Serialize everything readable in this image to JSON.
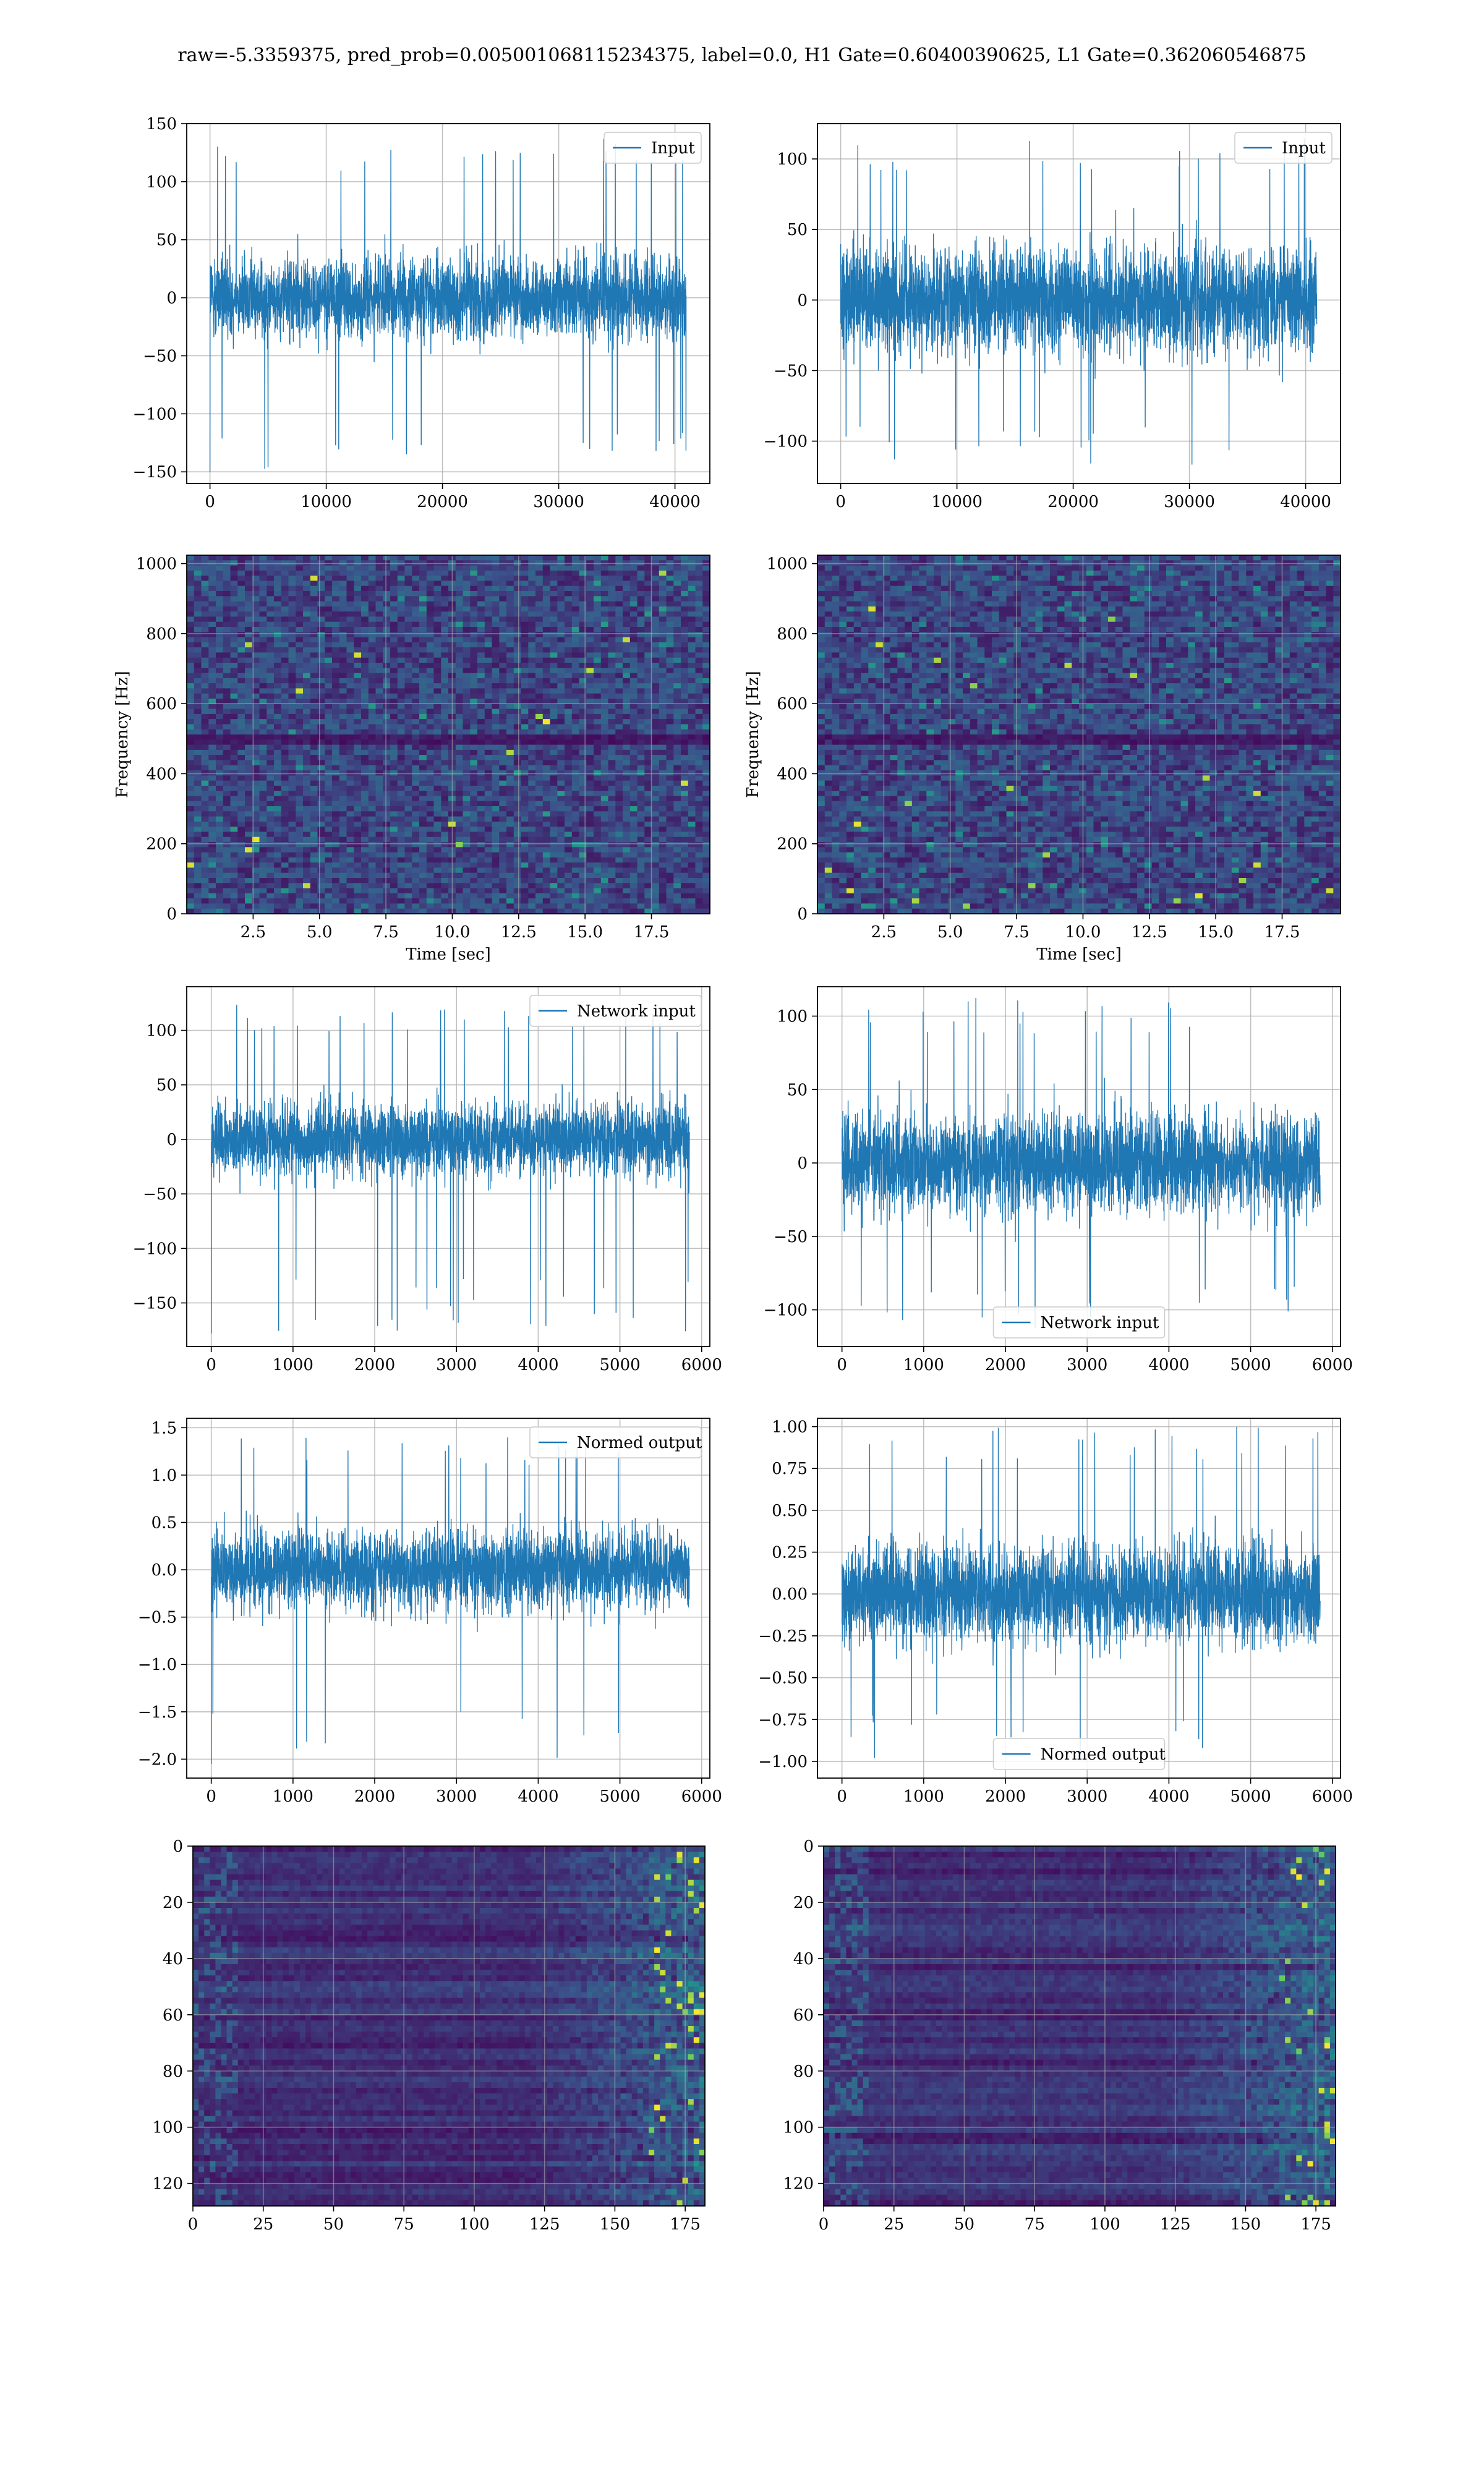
{
  "figure_title": "raw=-5.3359375, pred_prob=0.005001068115234375, label=0.0, H1 Gate=0.60400390625, L1 Gate=0.362060546875",
  "colors": {
    "line": "#1f77b4",
    "viridis_dark": "#440154",
    "viridis_mid": "#21918c",
    "viridis_bright": "#fde725",
    "grid": "#b0b0b0"
  },
  "chart_data": [
    {
      "id": "r1c1",
      "type": "line",
      "legend": [
        "Input"
      ],
      "legend_loc": "upper right",
      "xlim": [
        -2000,
        43000
      ],
      "ylim": [
        -160,
        150
      ],
      "xticks": [
        0,
        10000,
        20000,
        30000,
        40000
      ],
      "yticks": [
        150,
        100,
        50,
        0,
        -50,
        -100,
        -150
      ],
      "yticklabels": [
        "150",
        "100",
        "50",
        "0",
        "−50",
        "−100",
        "−150"
      ],
      "series": {
        "x_start": 0,
        "x_end": 40960,
        "center": 0,
        "typical_amplitude": [
          -70,
          80
        ],
        "peak_max": 137,
        "peak_min": -150
      }
    },
    {
      "id": "r1c2",
      "type": "line",
      "legend": [
        "Input"
      ],
      "legend_loc": "upper right",
      "xlim": [
        -2000,
        43000
      ],
      "ylim": [
        -130,
        125
      ],
      "xticks": [
        0,
        10000,
        20000,
        30000,
        40000
      ],
      "yticks": [
        100,
        50,
        0,
        -50,
        -100
      ],
      "yticklabels": [
        "100",
        "50",
        "0",
        "−50",
        "−100"
      ],
      "series": {
        "x_start": 0,
        "x_end": 40960,
        "center": 0,
        "typical_amplitude": [
          -80,
          85
        ],
        "peak_max": 117,
        "peak_min": -118
      }
    },
    {
      "id": "r2c1",
      "type": "heatmap",
      "xlabel": "Time [sec]",
      "ylabel": "Frequency [Hz]",
      "xlim": [
        0,
        19.7
      ],
      "ylim": [
        0,
        1024
      ],
      "xticks": [
        2.5,
        5.0,
        7.5,
        10.0,
        12.5,
        15.0,
        17.5
      ],
      "yticks": [
        0,
        200,
        400,
        600,
        800,
        1000
      ],
      "xticklabels": [
        "2.5",
        "5.0",
        "7.5",
        "10.0",
        "12.5",
        "15.0",
        "17.5"
      ],
      "yticklabels": [
        "0",
        "200",
        "400",
        "600",
        "800",
        "1000"
      ],
      "colormap": "viridis",
      "dark_band_hz": 500
    },
    {
      "id": "r2c2",
      "type": "heatmap",
      "xlabel": "Time [sec]",
      "ylabel": "Frequency [Hz]",
      "xlim": [
        0,
        19.7
      ],
      "ylim": [
        0,
        1024
      ],
      "xticks": [
        2.5,
        5.0,
        7.5,
        10.0,
        12.5,
        15.0,
        17.5
      ],
      "yticks": [
        0,
        200,
        400,
        600,
        800,
        1000
      ],
      "xticklabels": [
        "2.5",
        "5.0",
        "7.5",
        "10.0",
        "12.5",
        "15.0",
        "17.5"
      ],
      "yticklabels": [
        "0",
        "200",
        "400",
        "600",
        "800",
        "1000"
      ],
      "colormap": "viridis",
      "dark_band_hz": 500
    },
    {
      "id": "r3c1",
      "type": "line",
      "legend": [
        "Network input"
      ],
      "legend_loc": "upper right",
      "xlim": [
        -300,
        6100
      ],
      "ylim": [
        -190,
        140
      ],
      "xticks": [
        0,
        1000,
        2000,
        3000,
        4000,
        5000,
        6000
      ],
      "yticks": [
        100,
        50,
        0,
        -50,
        -100,
        -150
      ],
      "yticklabels": [
        "100",
        "50",
        "0",
        "−50",
        "−100",
        "−150"
      ],
      "series": {
        "x_start": 0,
        "x_end": 5850,
        "center": 0,
        "typical_amplitude": [
          -75,
          70
        ],
        "peak_max": 125,
        "peak_min": -178
      }
    },
    {
      "id": "r3c2",
      "type": "line",
      "legend": [
        "Network input"
      ],
      "legend_loc": "lower center",
      "xlim": [
        -300,
        6100
      ],
      "ylim": [
        -125,
        120
      ],
      "xticks": [
        0,
        1000,
        2000,
        3000,
        4000,
        5000,
        6000
      ],
      "yticks": [
        100,
        50,
        0,
        -50,
        -100
      ],
      "yticklabels": [
        "100",
        "50",
        "0",
        "−50",
        "−100"
      ],
      "series": {
        "x_start": 0,
        "x_end": 5850,
        "center": 0,
        "typical_amplitude": [
          -75,
          70
        ],
        "peak_max": 113,
        "peak_min": -117
      }
    },
    {
      "id": "r4c1",
      "type": "line",
      "legend": [
        "Normed output"
      ],
      "legend_loc": "upper right",
      "xlim": [
        -300,
        6100
      ],
      "ylim": [
        -2.2,
        1.6
      ],
      "xticks": [
        0,
        1000,
        2000,
        3000,
        4000,
        5000,
        6000
      ],
      "yticks": [
        1.5,
        1.0,
        0.5,
        0.0,
        -0.5,
        -1.0,
        -1.5,
        -2.0
      ],
      "yticklabels": [
        "1.5",
        "1.0",
        "0.5",
        "0.0",
        "−0.5",
        "−1.0",
        "−1.5",
        "−2.0"
      ],
      "series": {
        "x_start": 0,
        "x_end": 5850,
        "center": 0,
        "typical_amplitude": [
          -0.9,
          0.85
        ],
        "peak_max": 1.42,
        "peak_min": -2.05
      }
    },
    {
      "id": "r4c2",
      "type": "line",
      "legend": [
        "Normed output"
      ],
      "legend_loc": "lower center",
      "xlim": [
        -300,
        6100
      ],
      "ylim": [
        -1.1,
        1.05
      ],
      "xticks": [
        0,
        1000,
        2000,
        3000,
        4000,
        5000,
        6000
      ],
      "yticks": [
        1.0,
        0.75,
        0.5,
        0.25,
        0.0,
        -0.25,
        -0.5,
        -0.75,
        -1.0
      ],
      "yticklabels": [
        "1.00",
        "0.75",
        "0.50",
        "0.25",
        "0.00",
        "−0.25",
        "−0.50",
        "−0.75",
        "−1.00"
      ],
      "series": {
        "x_start": 0,
        "x_end": 5850,
        "center": 0,
        "typical_amplitude": [
          -0.65,
          0.6
        ],
        "peak_max": 1.0,
        "peak_min": -1.0
      }
    },
    {
      "id": "r5c1",
      "type": "heatmap",
      "xlim": [
        0,
        182
      ],
      "ylim": [
        128,
        0
      ],
      "xticks": [
        0,
        25,
        50,
        75,
        100,
        125,
        150,
        175
      ],
      "yticks": [
        0,
        20,
        40,
        60,
        80,
        100,
        120
      ],
      "xticklabels": [
        "0",
        "25",
        "50",
        "75",
        "100",
        "125",
        "150",
        "175"
      ],
      "yticklabels": [
        "0",
        "20",
        "40",
        "60",
        "80",
        "100",
        "120"
      ],
      "colormap": "viridis",
      "rows": 128,
      "cols": 182
    },
    {
      "id": "r5c2",
      "type": "heatmap",
      "xlim": [
        0,
        182
      ],
      "ylim": [
        128,
        0
      ],
      "xticks": [
        0,
        25,
        50,
        75,
        100,
        125,
        150,
        175
      ],
      "yticks": [
        0,
        20,
        40,
        60,
        80,
        100,
        120
      ],
      "xticklabels": [
        "0",
        "25",
        "50",
        "75",
        "100",
        "125",
        "150",
        "175"
      ],
      "yticklabels": [
        "0",
        "20",
        "40",
        "60",
        "80",
        "100",
        "120"
      ],
      "colormap": "viridis",
      "rows": 128,
      "cols": 182
    }
  ]
}
